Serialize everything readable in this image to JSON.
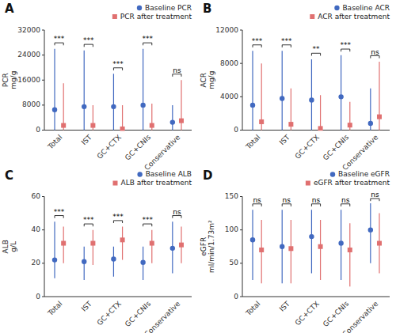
{
  "chart_data": [
    {
      "type": "errorbar",
      "title": "A",
      "ylabel": "PCR\nmg/g",
      "categories": [
        "Total",
        "IST",
        "GC+CTX",
        "GC+CNIs",
        "Conservative"
      ],
      "ylim": [
        0,
        32000
      ],
      "yticks": [
        0,
        8000,
        16000,
        24000,
        32000
      ],
      "grid": false,
      "legend": "upper right",
      "series": [
        {
          "name": "Baseline PCR",
          "color": "#4169C0",
          "marker": "circle",
          "values": [
            6500,
            7500,
            7500,
            8000,
            2500
          ],
          "lower": [
            0,
            0,
            0,
            0,
            0
          ],
          "upper": [
            26000,
            25500,
            18000,
            26000,
            8000
          ]
        },
        {
          "name": "PCR after treatment",
          "color": "#E07070",
          "marker": "square",
          "values": [
            1500,
            1500,
            400,
            1500,
            3000
          ],
          "lower": [
            0,
            0,
            0,
            0,
            0
          ],
          "upper": [
            15000,
            8000,
            8000,
            8500,
            16000
          ]
        }
      ],
      "annotations": [
        "***",
        "***",
        "***",
        "***",
        "ns"
      ]
    },
    {
      "type": "errorbar",
      "title": "B",
      "ylabel": "ACR\nmg/g",
      "categories": [
        "Total",
        "IST",
        "GC+CTX",
        "GC+CNIs",
        "Conservative"
      ],
      "ylim": [
        0,
        12000
      ],
      "yticks": [
        0,
        4000,
        8000,
        12000
      ],
      "grid": false,
      "legend": "upper right",
      "series": [
        {
          "name": "Baseline ACR",
          "color": "#4169C0",
          "marker": "circle",
          "values": [
            3000,
            3800,
            3600,
            4000,
            800
          ],
          "lower": [
            0,
            0,
            0,
            0,
            0
          ],
          "upper": [
            9500,
            9500,
            8500,
            9000,
            5000
          ]
        },
        {
          "name": "ACR after treatment",
          "color": "#E07070",
          "marker": "square",
          "values": [
            1000,
            700,
            200,
            600,
            1600
          ],
          "lower": [
            0,
            0,
            0,
            0,
            0
          ],
          "upper": [
            8000,
            5000,
            4200,
            3400,
            8200
          ]
        }
      ],
      "annotations": [
        "***",
        "***",
        "**",
        "***",
        "ns"
      ]
    },
    {
      "type": "errorbar",
      "title": "C",
      "ylabel": "ALB\ng/L",
      "categories": [
        "Total",
        "IST",
        "GC+CTX",
        "GC+CNIs",
        "Conservative"
      ],
      "ylim": [
        0,
        60
      ],
      "yticks": [
        0,
        20,
        40,
        60
      ],
      "grid": false,
      "legend": "upper right",
      "series": [
        {
          "name": "Baseline ALB",
          "color": "#4169C0",
          "marker": "circle",
          "values": [
            22,
            21,
            22.5,
            20.5,
            29
          ],
          "lower": [
            11,
            10,
            12,
            10,
            14
          ],
          "upper": [
            45,
            30,
            30,
            30,
            45
          ]
        },
        {
          "name": "ALB after treatment",
          "color": "#E07070",
          "marker": "square",
          "values": [
            32,
            32,
            34,
            32,
            31
          ],
          "lower": [
            20,
            19,
            22,
            20,
            20
          ],
          "upper": [
            42,
            40,
            42,
            40,
            42
          ]
        }
      ],
      "annotations": [
        "***",
        "***",
        "***",
        "***",
        "ns"
      ]
    },
    {
      "type": "errorbar",
      "title": "D",
      "ylabel": "eGFR\nml/min/1.73m²",
      "categories": [
        "Total",
        "IST",
        "GC+CTX",
        "GC+CNIs",
        "Conservative"
      ],
      "ylim": [
        0,
        150
      ],
      "yticks": [
        0,
        50,
        100,
        150
      ],
      "grid": false,
      "legend": "upper right",
      "series": [
        {
          "name": "Baseline eGFR",
          "color": "#4169C0",
          "marker": "circle",
          "values": [
            85,
            75,
            90,
            80,
            100
          ],
          "lower": [
            25,
            20,
            35,
            25,
            50
          ],
          "upper": [
            130,
            130,
            130,
            130,
            140
          ]
        },
        {
          "name": "eGFR after treatment",
          "color": "#E07070",
          "marker": "square",
          "values": [
            70,
            72,
            75,
            70,
            80
          ],
          "lower": [
            20,
            20,
            25,
            15,
            35
          ],
          "upper": [
            115,
            115,
            115,
            110,
            125
          ]
        }
      ],
      "annotations": [
        "ns",
        "ns",
        "ns",
        "ns",
        "ns"
      ]
    }
  ]
}
